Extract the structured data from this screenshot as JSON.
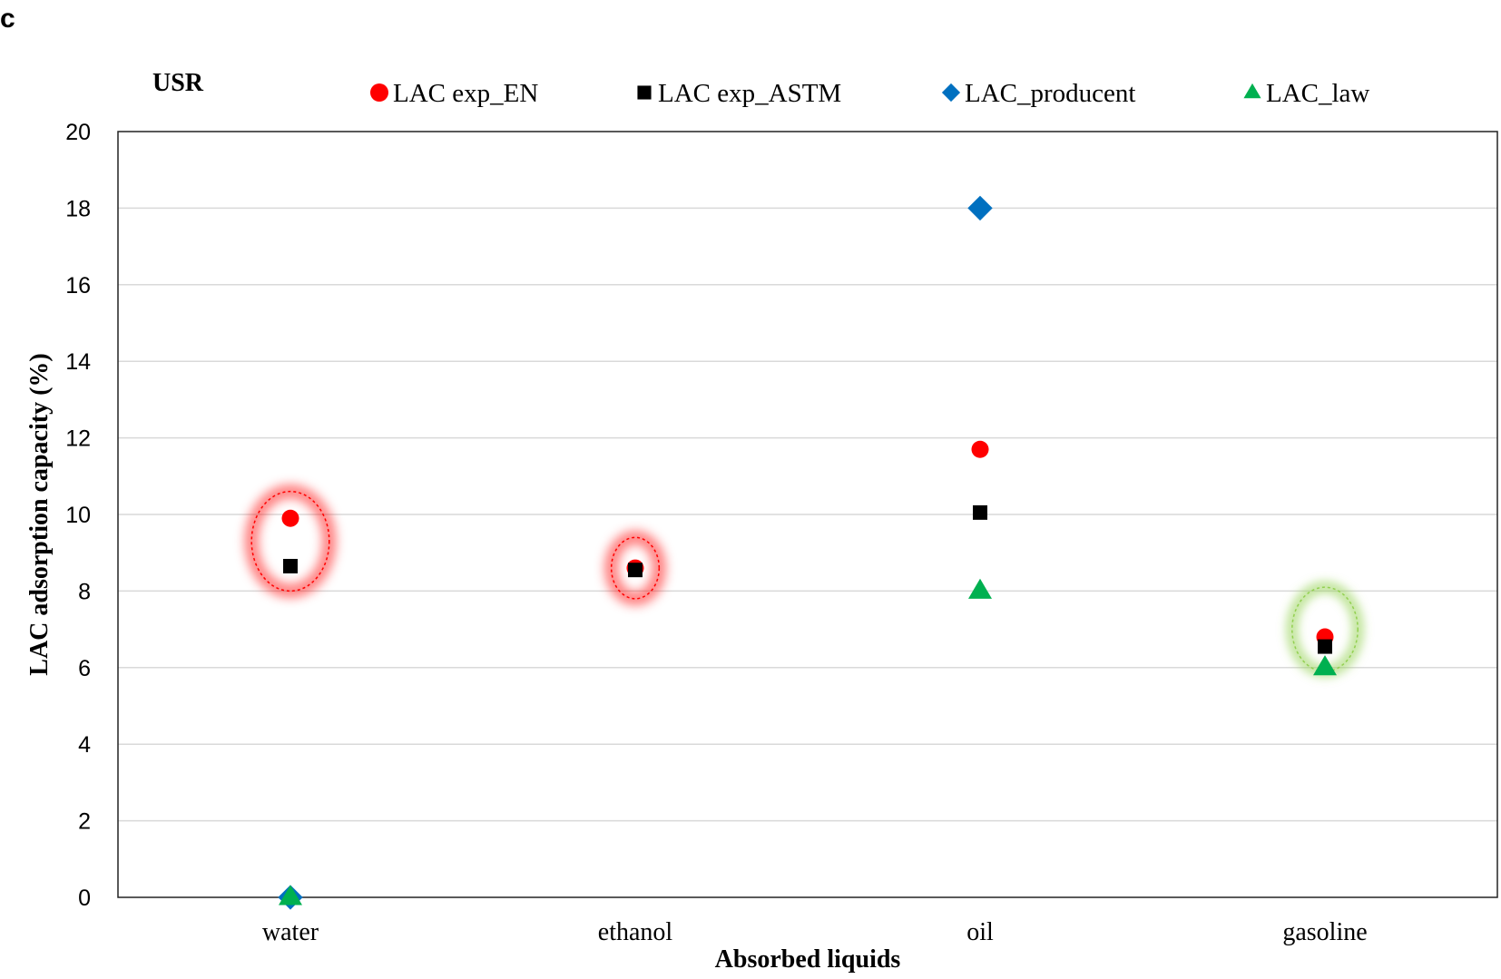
{
  "panel_label": "c",
  "chart_data": {
    "type": "scatter",
    "title": "USR",
    "xlabel": "Absorbed liquids",
    "ylabel": "LAC adsorption capacity (%)",
    "categories": [
      "water",
      "ethanol",
      "oil",
      "gasoline"
    ],
    "ylim": [
      0,
      20
    ],
    "yticks": [
      0,
      2,
      4,
      6,
      8,
      10,
      12,
      14,
      16,
      18,
      20
    ],
    "grid": true,
    "legend_position": "top",
    "series": [
      {
        "name": "LAC exp_EN",
        "marker": "circle",
        "color": "#ff0000",
        "values": [
          9.9,
          8.6,
          11.7,
          6.8
        ]
      },
      {
        "name": "LAC exp_ASTM",
        "marker": "square",
        "color": "#000000",
        "values": [
          8.65,
          8.55,
          10.05,
          6.55
        ]
      },
      {
        "name": "LAC_producent",
        "marker": "diamond",
        "color": "#0070c0",
        "values": [
          0,
          null,
          18,
          null
        ]
      },
      {
        "name": "LAC_law",
        "marker": "triangle",
        "color": "#00b050",
        "values": [
          0,
          null,
          8,
          6
        ]
      }
    ],
    "highlights": [
      {
        "category": "water",
        "range": [
          8.0,
          10.6
        ],
        "color": "#ff0000"
      },
      {
        "category": "ethanol",
        "range": [
          7.8,
          9.4
        ],
        "color": "#ff0000"
      },
      {
        "category": "gasoline",
        "range": [
          5.9,
          8.1
        ],
        "color": "#92d050"
      }
    ]
  }
}
